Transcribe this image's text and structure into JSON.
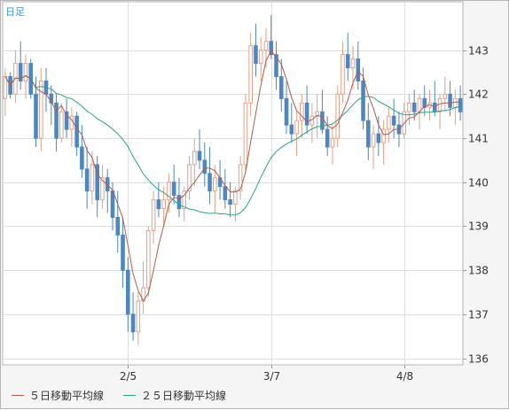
{
  "chart_data": {
    "type": "candlestick",
    "period_label": "日足",
    "y_ticks": [
      143,
      142,
      141,
      140,
      139,
      138,
      137,
      136
    ],
    "ylim": [
      135.85,
      144.1
    ],
    "x_ticks": [
      {
        "label": "2/5",
        "index": 24
      },
      {
        "label": "3/7",
        "index": 52
      },
      {
        "label": "4/8",
        "index": 78
      }
    ],
    "grid": "on",
    "legend_position": "bottom-left",
    "colors": {
      "up": "#e3a188",
      "down": "#4e86c0",
      "ma5": "#b45a4a",
      "ma25": "#2aa383"
    },
    "series": [
      {
        "name": "５日移動平均線",
        "color": "#b45a4a"
      },
      {
        "name": "２５日移動平均線",
        "color": "#2aa383"
      }
    ],
    "ohlc": [
      [
        141.9,
        142.6,
        141.5,
        142.4
      ],
      [
        142.4,
        142.5,
        141.9,
        142.0
      ],
      [
        142.0,
        143.0,
        141.8,
        142.7
      ],
      [
        142.7,
        143.2,
        142.1,
        142.3
      ],
      [
        142.3,
        142.9,
        141.9,
        142.7
      ],
      [
        142.7,
        142.8,
        141.9,
        142.0
      ],
      [
        142.0,
        142.4,
        140.8,
        141.0
      ],
      [
        141.0,
        142.6,
        140.7,
        142.3
      ],
      [
        142.3,
        142.6,
        141.6,
        142.0
      ],
      [
        142.0,
        142.2,
        141.3,
        141.8
      ],
      [
        141.8,
        142.0,
        140.7,
        141.0
      ],
      [
        141.0,
        141.8,
        140.9,
        141.6
      ],
      [
        141.6,
        141.9,
        141.0,
        141.2
      ],
      [
        141.2,
        141.7,
        140.8,
        141.5
      ],
      [
        141.5,
        141.6,
        140.6,
        140.8
      ],
      [
        140.8,
        141.3,
        140.1,
        140.3
      ],
      [
        140.3,
        140.8,
        139.4,
        139.8
      ],
      [
        139.8,
        140.7,
        139.5,
        140.4
      ],
      [
        140.4,
        140.6,
        139.2,
        139.6
      ],
      [
        139.6,
        140.4,
        139.4,
        140.1
      ],
      [
        140.1,
        140.3,
        139.3,
        139.8
      ],
      [
        139.8,
        140.0,
        138.9,
        139.2
      ],
      [
        139.2,
        139.8,
        138.4,
        138.8
      ],
      [
        138.8,
        139.2,
        137.6,
        138.0
      ],
      [
        138.0,
        138.3,
        136.6,
        137.0
      ],
      [
        137.0,
        137.5,
        136.4,
        136.6
      ],
      [
        136.6,
        137.5,
        136.3,
        137.3
      ],
      [
        137.3,
        138.2,
        137.0,
        137.6
      ],
      [
        137.6,
        139.0,
        137.4,
        138.9
      ],
      [
        138.9,
        139.8,
        138.6,
        139.6
      ],
      [
        139.6,
        140.0,
        139.2,
        139.4
      ],
      [
        139.4,
        139.9,
        139.0,
        139.6
      ],
      [
        139.6,
        140.2,
        139.3,
        140.0
      ],
      [
        140.0,
        140.4,
        139.5,
        139.7
      ],
      [
        139.7,
        140.1,
        139.2,
        139.4
      ],
      [
        139.4,
        139.9,
        139.1,
        139.8
      ],
      [
        139.8,
        140.6,
        139.6,
        140.4
      ],
      [
        140.4,
        141.0,
        139.9,
        140.7
      ],
      [
        140.7,
        141.2,
        140.3,
        140.5
      ],
      [
        140.5,
        140.9,
        139.9,
        140.2
      ],
      [
        140.2,
        140.8,
        139.5,
        139.8
      ],
      [
        139.8,
        140.4,
        139.3,
        140.1
      ],
      [
        140.1,
        140.5,
        139.6,
        139.9
      ],
      [
        139.9,
        140.3,
        139.4,
        139.6
      ],
      [
        139.6,
        140.0,
        139.2,
        139.5
      ],
      [
        139.5,
        139.9,
        139.1,
        139.8
      ],
      [
        139.8,
        140.6,
        139.6,
        140.4
      ],
      [
        140.4,
        142.0,
        140.2,
        141.8
      ],
      [
        141.8,
        143.4,
        141.5,
        143.1
      ],
      [
        143.1,
        143.6,
        142.4,
        142.7
      ],
      [
        142.7,
        143.3,
        142.3,
        143.0
      ],
      [
        143.0,
        143.5,
        142.6,
        143.2
      ],
      [
        143.2,
        143.8,
        142.8,
        142.9
      ],
      [
        142.9,
        143.2,
        142.1,
        142.4
      ],
      [
        142.4,
        142.8,
        141.6,
        141.9
      ],
      [
        141.9,
        142.3,
        141.1,
        141.3
      ],
      [
        141.3,
        141.8,
        140.9,
        141.1
      ],
      [
        141.1,
        141.6,
        140.6,
        141.4
      ],
      [
        141.4,
        142.0,
        141.0,
        141.8
      ],
      [
        141.8,
        142.2,
        141.1,
        141.3
      ],
      [
        141.3,
        141.8,
        140.9,
        141.5
      ],
      [
        141.5,
        142.0,
        141.0,
        141.6
      ],
      [
        141.6,
        142.1,
        141.1,
        141.2
      ],
      [
        141.2,
        141.5,
        140.6,
        140.8
      ],
      [
        140.8,
        141.3,
        140.4,
        141.0
      ],
      [
        141.0,
        142.2,
        140.8,
        142.0
      ],
      [
        142.0,
        143.2,
        141.8,
        142.9
      ],
      [
        142.9,
        143.4,
        142.3,
        142.6
      ],
      [
        142.6,
        143.1,
        142.1,
        142.8
      ],
      [
        142.8,
        143.2,
        142.1,
        142.3
      ],
      [
        142.3,
        142.6,
        141.2,
        141.4
      ],
      [
        141.4,
        141.8,
        140.5,
        140.8
      ],
      [
        140.8,
        141.3,
        140.3,
        141.1
      ],
      [
        141.1,
        141.5,
        140.6,
        140.9
      ],
      [
        140.9,
        141.4,
        140.4,
        141.2
      ],
      [
        141.2,
        141.7,
        140.9,
        141.5
      ],
      [
        141.5,
        141.9,
        141.0,
        141.3
      ],
      [
        141.3,
        141.6,
        140.8,
        141.1
      ],
      [
        141.1,
        141.8,
        141.0,
        141.6
      ],
      [
        141.6,
        142.0,
        141.3,
        141.8
      ],
      [
        141.8,
        142.1,
        141.4,
        141.6
      ],
      [
        141.6,
        142.0,
        141.2,
        141.9
      ],
      [
        141.9,
        142.2,
        141.5,
        141.7
      ],
      [
        141.7,
        142.1,
        141.4,
        141.8
      ],
      [
        141.8,
        142.3,
        141.5,
        141.6
      ],
      [
        141.6,
        142.0,
        141.2,
        141.9
      ],
      [
        141.9,
        142.4,
        141.6,
        142.0
      ],
      [
        142.0,
        142.3,
        141.5,
        141.7
      ],
      [
        141.7,
        142.1,
        141.3,
        141.9
      ],
      [
        141.9,
        142.2,
        141.4,
        141.6
      ]
    ]
  }
}
